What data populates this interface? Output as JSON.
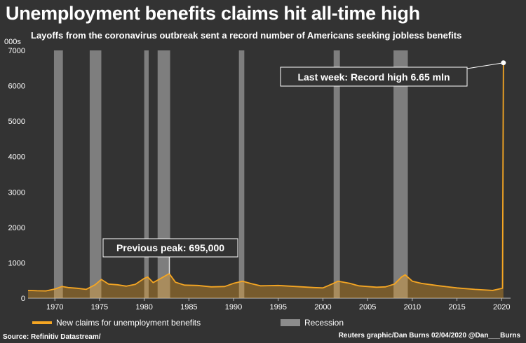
{
  "header": {
    "title": "Unemployment benefits claims hit all-time high",
    "subtitle": "Layoffs from the coronavirus outbreak sent a record number of Americans seeking jobless benefits"
  },
  "footer": {
    "source": "Source: Refinitiv Datastream/",
    "credit": "Reuters graphic/Dan Burns 02/04/2020 @Dan___Burns"
  },
  "legend": {
    "claims_label": "New claims for unemployment benefits",
    "recession_label": "Recession"
  },
  "colors": {
    "background": "#333333",
    "claims": "#f5a623",
    "recession": "#8c8c8c",
    "axis_text": "#ffffff"
  },
  "chart_data": {
    "type": "area",
    "title": "Unemployment benefits claims hit all-time high",
    "subtitle": "Layoffs from the coronavirus outbreak sent a record number of Americans seeking jobless benefits",
    "ylabel": "000s",
    "xlim": [
      1967,
      2021
    ],
    "ylim": [
      0,
      7000
    ],
    "x_ticks": [
      1970,
      1975,
      1980,
      1985,
      1990,
      1995,
      2000,
      2005,
      2010,
      2015,
      2020
    ],
    "y_ticks": [
      0,
      1000,
      2000,
      3000,
      4000,
      5000,
      6000,
      7000
    ],
    "grid": false,
    "legend_position": "bottom",
    "series": [
      {
        "name": "New claims for unemployment benefits",
        "x": [
          1967.0,
          1968.0,
          1969.0,
          1970.0,
          1970.8,
          1971.5,
          1972.5,
          1973.5,
          1974.5,
          1975.2,
          1976.0,
          1977.0,
          1978.0,
          1979.0,
          1980.0,
          1980.4,
          1981.0,
          1982.0,
          1982.8,
          1983.5,
          1984.5,
          1986.0,
          1987.5,
          1989.0,
          1990.0,
          1991.0,
          1992.0,
          1993.0,
          1995.0,
          1997.0,
          1999.0,
          2000.0,
          2001.0,
          2001.7,
          2003.0,
          2004.0,
          2005.0,
          2006.0,
          2007.0,
          2008.0,
          2008.8,
          2009.2,
          2010.0,
          2011.0,
          2013.0,
          2015.0,
          2017.0,
          2019.0,
          2020.1,
          2020.2
        ],
        "y": [
          220,
          210,
          205,
          260,
          330,
          300,
          280,
          250,
          380,
          530,
          400,
          380,
          340,
          390,
          560,
          600,
          440,
          580,
          695,
          450,
          370,
          360,
          320,
          330,
          420,
          480,
          410,
          350,
          360,
          330,
          300,
          290,
          400,
          480,
          420,
          350,
          330,
          310,
          320,
          400,
          600,
          660,
          480,
          420,
          350,
          290,
          250,
          220,
          280,
          6650
        ]
      }
    ],
    "recessions": [
      [
        1969.9,
        1970.9
      ],
      [
        1973.9,
        1975.2
      ],
      [
        1980.0,
        1980.5
      ],
      [
        1981.5,
        1982.9
      ],
      [
        1990.6,
        1991.2
      ],
      [
        2001.2,
        2001.9
      ],
      [
        2007.9,
        2009.5
      ]
    ],
    "annotations": [
      {
        "text": "Previous peak: 695,000",
        "x": 1982.8,
        "y": 695
      },
      {
        "text": "Last week: Record high 6.65 mln",
        "x": 2020.2,
        "y": 6650
      }
    ]
  }
}
